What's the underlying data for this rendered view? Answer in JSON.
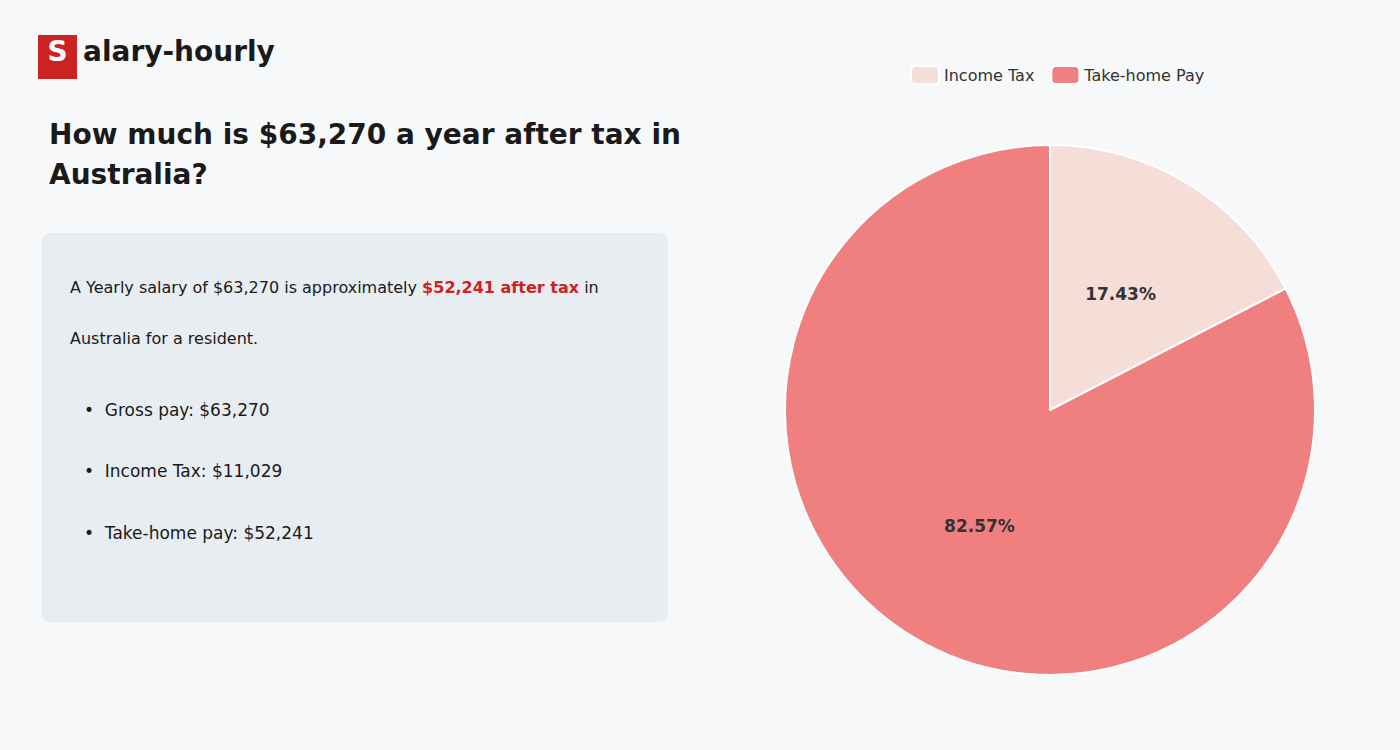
{
  "chart_data": {
    "type": "pie",
    "title": "How much is $63,270 a year after tax in\nAustralia?",
    "annotations": [
      "S",
      "alary-hourly",
      "A Yearly salary of $63,270 is approximately ",
      "$52,241 after tax",
      " in",
      "Australia for a resident.",
      "•  Gross pay: $63,270",
      "•  Income Tax: $11,029",
      "•  Take-home pay: $52,241"
    ],
    "categories": [
      "Income Tax",
      "Take-home Pay"
    ],
    "values": [
      17.43,
      82.57
    ],
    "value_labels": [
      "17.43%",
      "82.57%"
    ],
    "colors": [
      "#f5ddd8",
      "#f08080"
    ],
    "data_labels": true,
    "legend": "top"
  }
}
